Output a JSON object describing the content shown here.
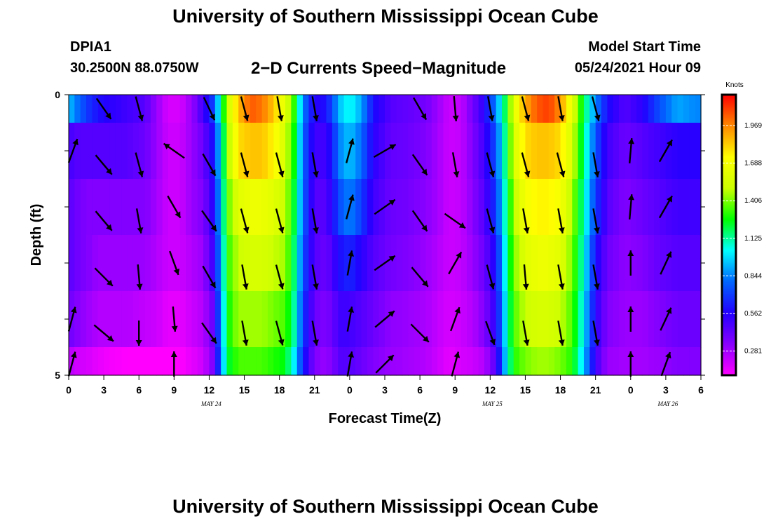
{
  "header": {
    "title": "University of Southern Mississippi Ocean Cube",
    "station_id": "DPIA1",
    "station_location": "30.2500N  88.0750W",
    "chart_title": "2−D Currents Speed−Magnitude",
    "start_label": "Model Start Time",
    "start_value": "05/24/2021 Hour 09"
  },
  "footer": {
    "title": "University of Southern Mississippi Ocean Cube"
  },
  "colors": {
    "scale": [
      "#ff00ff",
      "#8800ff",
      "#2200ff",
      "#0066ff",
      "#00ffff",
      "#00ff00",
      "#ccff00",
      "#ffff00",
      "#ff8800",
      "#ff0000"
    ],
    "arrow": "#000000"
  },
  "chart_data": {
    "type": "heatmap",
    "title": "2−D Currents Speed−Magnitude",
    "xlabel": "Forecast Time(Z)",
    "ylabel": "Depth (ft)",
    "x_tick_labels": [
      "0",
      "3",
      "6",
      "9",
      "12",
      "15",
      "18",
      "21",
      "0",
      "3",
      "6",
      "9",
      "12",
      "15",
      "18",
      "21",
      "0",
      "3",
      "6"
    ],
    "x_tick_hours": [
      0,
      3,
      6,
      9,
      12,
      15,
      18,
      21,
      24,
      27,
      30,
      33,
      36,
      39,
      42,
      45,
      48,
      51,
      54
    ],
    "date_labels": [
      {
        "label": "MAY 24",
        "hour": 12
      },
      {
        "label": "MAY 25",
        "hour": 36
      },
      {
        "label": "MAY 26",
        "hour": 51
      }
    ],
    "y_tick_labels": [
      "0",
      "5"
    ],
    "ylim": [
      0,
      5
    ],
    "xlim": [
      0,
      54
    ],
    "colorbar": {
      "unit": "Knots",
      "tick_values": [
        1.969,
        1.688,
        1.406,
        1.125,
        0.844,
        0.562,
        0.281
      ],
      "tick_labels": [
        "1.969",
        "1.688",
        "1.406",
        "1.125",
        "0.844",
        "0.562",
        "0.281"
      ],
      "range": [
        0.1,
        2.2
      ]
    },
    "depth_layers": [
      0.25,
      1.25,
      2.25,
      3.25,
      4.25,
      4.75
    ],
    "time_speed_profile": [
      {
        "hour": 0,
        "speeds": [
          0.95,
          0.5,
          0.45,
          0.45,
          0.4,
          0.25
        ]
      },
      {
        "hour": 0.5,
        "speeds": [
          0.85,
          0.45,
          0.4,
          0.4,
          0.35,
          0.2
        ]
      },
      {
        "hour": 1.5,
        "speeds": [
          0.7,
          0.45,
          0.35,
          0.35,
          0.3,
          0.18
        ]
      },
      {
        "hour": 2.5,
        "speeds": [
          0.6,
          0.45,
          0.35,
          0.3,
          0.25,
          0.15
        ]
      },
      {
        "hour": 3.5,
        "speeds": [
          0.55,
          0.45,
          0.35,
          0.3,
          0.25,
          0.12
        ]
      },
      {
        "hour": 5,
        "speeds": [
          0.5,
          0.45,
          0.35,
          0.3,
          0.25,
          0.1
        ]
      },
      {
        "hour": 6.5,
        "speeds": [
          0.45,
          0.4,
          0.35,
          0.3,
          0.22,
          0.1
        ]
      },
      {
        "hour": 7.5,
        "speeds": [
          0.3,
          0.3,
          0.28,
          0.25,
          0.2,
          0.1
        ]
      },
      {
        "hour": 8.5,
        "speeds": [
          0.18,
          0.2,
          0.2,
          0.2,
          0.15,
          0.1
        ]
      },
      {
        "hour": 9.5,
        "speeds": [
          0.18,
          0.2,
          0.2,
          0.2,
          0.15,
          0.1
        ]
      },
      {
        "hour": 10.5,
        "speeds": [
          0.3,
          0.3,
          0.3,
          0.25,
          0.2,
          0.15
        ]
      },
      {
        "hour": 11.5,
        "speeds": [
          0.5,
          0.4,
          0.35,
          0.3,
          0.25,
          0.2
        ]
      },
      {
        "hour": 12.3,
        "speeds": [
          0.7,
          0.6,
          0.55,
          0.5,
          0.4,
          0.35
        ]
      },
      {
        "hour": 13,
        "speeds": [
          1.1,
          1.0,
          0.95,
          0.9,
          0.85,
          0.8
        ]
      },
      {
        "hour": 13.5,
        "speeds": [
          1.5,
          1.4,
          1.35,
          1.3,
          1.25,
          1.2
        ]
      },
      {
        "hour": 14.5,
        "speeds": [
          1.85,
          1.8,
          1.6,
          1.5,
          1.45,
          1.35
        ]
      },
      {
        "hour": 15.5,
        "speeds": [
          2.05,
          1.85,
          1.65,
          1.55,
          1.45,
          1.35
        ]
      },
      {
        "hour": 16.5,
        "speeds": [
          2.0,
          1.85,
          1.65,
          1.55,
          1.45,
          1.35
        ]
      },
      {
        "hour": 17.5,
        "speeds": [
          1.85,
          1.75,
          1.6,
          1.5,
          1.4,
          1.3
        ]
      },
      {
        "hour": 18.5,
        "speeds": [
          1.6,
          1.55,
          1.5,
          1.45,
          1.35,
          1.25
        ]
      },
      {
        "hour": 19.3,
        "speeds": [
          1.3,
          1.25,
          1.2,
          1.15,
          1.1,
          1.0
        ]
      },
      {
        "hour": 20,
        "speeds": [
          0.85,
          0.8,
          0.8,
          0.75,
          0.7,
          0.65
        ]
      },
      {
        "hour": 21,
        "speeds": [
          0.55,
          0.5,
          0.45,
          0.45,
          0.4,
          0.35
        ]
      },
      {
        "hour": 22,
        "speeds": [
          0.6,
          0.5,
          0.45,
          0.4,
          0.35,
          0.3
        ]
      },
      {
        "hour": 23.2,
        "speeds": [
          0.95,
          0.85,
          0.75,
          0.6,
          0.5,
          0.45
        ]
      },
      {
        "hour": 24,
        "speeds": [
          1.05,
          0.95,
          0.85,
          0.65,
          0.5,
          0.45
        ]
      },
      {
        "hour": 25,
        "speeds": [
          0.9,
          0.8,
          0.7,
          0.55,
          0.45,
          0.4
        ]
      },
      {
        "hour": 26,
        "speeds": [
          0.6,
          0.55,
          0.5,
          0.45,
          0.4,
          0.35
        ]
      },
      {
        "hour": 27.5,
        "speeds": [
          0.45,
          0.42,
          0.4,
          0.38,
          0.32,
          0.3
        ]
      },
      {
        "hour": 29,
        "speeds": [
          0.42,
          0.4,
          0.38,
          0.35,
          0.3,
          0.28
        ]
      },
      {
        "hour": 30.5,
        "speeds": [
          0.38,
          0.35,
          0.33,
          0.3,
          0.27,
          0.25
        ]
      },
      {
        "hour": 31.5,
        "speeds": [
          0.3,
          0.28,
          0.28,
          0.25,
          0.22,
          0.2
        ]
      },
      {
        "hour": 32.5,
        "speeds": [
          0.2,
          0.2,
          0.2,
          0.2,
          0.18,
          0.15
        ]
      },
      {
        "hour": 33.5,
        "speeds": [
          0.22,
          0.22,
          0.22,
          0.22,
          0.2,
          0.18
        ]
      },
      {
        "hour": 34.5,
        "speeds": [
          0.38,
          0.35,
          0.33,
          0.3,
          0.25,
          0.2
        ]
      },
      {
        "hour": 35.5,
        "speeds": [
          0.55,
          0.5,
          0.45,
          0.4,
          0.35,
          0.25
        ]
      },
      {
        "hour": 36.5,
        "speeds": [
          0.85,
          0.75,
          0.7,
          0.6,
          0.55,
          0.45
        ]
      },
      {
        "hour": 37.3,
        "speeds": [
          1.2,
          1.15,
          1.1,
          1.05,
          1.0,
          0.95
        ]
      },
      {
        "hour": 38,
        "speeds": [
          1.6,
          1.55,
          1.45,
          1.4,
          1.35,
          1.3
        ]
      },
      {
        "hour": 39,
        "speeds": [
          1.9,
          1.8,
          1.7,
          1.6,
          1.5,
          1.4
        ]
      },
      {
        "hour": 40,
        "speeds": [
          2.05,
          1.85,
          1.75,
          1.65,
          1.55,
          1.45
        ]
      },
      {
        "hour": 41,
        "speeds": [
          2.1,
          1.85,
          1.75,
          1.65,
          1.55,
          1.45
        ]
      },
      {
        "hour": 42,
        "speeds": [
          1.95,
          1.8,
          1.7,
          1.6,
          1.5,
          1.4
        ]
      },
      {
        "hour": 43,
        "speeds": [
          1.6,
          1.55,
          1.45,
          1.4,
          1.35,
          1.3
        ]
      },
      {
        "hour": 44,
        "speeds": [
          1.2,
          1.15,
          1.1,
          1.05,
          1.0,
          0.95
        ]
      },
      {
        "hour": 45,
        "speeds": [
          0.85,
          0.75,
          0.7,
          0.6,
          0.55,
          0.5
        ]
      },
      {
        "hour": 46,
        "speeds": [
          0.6,
          0.5,
          0.45,
          0.4,
          0.35,
          0.3
        ]
      },
      {
        "hour": 47.5,
        "speeds": [
          0.45,
          0.4,
          0.35,
          0.32,
          0.3,
          0.28
        ]
      },
      {
        "hour": 49,
        "speeds": [
          0.55,
          0.45,
          0.4,
          0.35,
          0.3,
          0.28
        ]
      },
      {
        "hour": 50.5,
        "speeds": [
          0.75,
          0.5,
          0.45,
          0.42,
          0.35,
          0.3
        ]
      },
      {
        "hour": 52,
        "speeds": [
          0.9,
          0.55,
          0.5,
          0.45,
          0.4,
          0.35
        ]
      },
      {
        "hour": 53.5,
        "speeds": [
          0.85,
          0.55,
          0.5,
          0.45,
          0.4,
          0.35
        ]
      }
    ],
    "current_arrows": [
      {
        "hour": 0,
        "depth_ft": 1.0,
        "dir_deg": 20
      },
      {
        "hour": 0,
        "depth_ft": 4.0,
        "dir_deg": 15
      },
      {
        "hour": 0,
        "depth_ft": 4.8,
        "dir_deg": 15
      },
      {
        "hour": 3,
        "depth_ft": 0.25,
        "dir_deg": 145
      },
      {
        "hour": 3,
        "depth_ft": 1.25,
        "dir_deg": 140
      },
      {
        "hour": 3,
        "depth_ft": 2.25,
        "dir_deg": 140
      },
      {
        "hour": 3,
        "depth_ft": 3.25,
        "dir_deg": 135
      },
      {
        "hour": 3,
        "depth_ft": 4.25,
        "dir_deg": 130
      },
      {
        "hour": 6,
        "depth_ft": 0.25,
        "dir_deg": 165
      },
      {
        "hour": 6,
        "depth_ft": 1.25,
        "dir_deg": 165
      },
      {
        "hour": 6,
        "depth_ft": 2.25,
        "dir_deg": 170
      },
      {
        "hour": 6,
        "depth_ft": 3.25,
        "dir_deg": 175
      },
      {
        "hour": 6,
        "depth_ft": 4.25,
        "dir_deg": 180
      },
      {
        "hour": 9,
        "depth_ft": 1.0,
        "dir_deg": 305
      },
      {
        "hour": 9,
        "depth_ft": 2.0,
        "dir_deg": 150
      },
      {
        "hour": 9,
        "depth_ft": 3.0,
        "dir_deg": 160
      },
      {
        "hour": 9,
        "depth_ft": 4.0,
        "dir_deg": 175
      },
      {
        "hour": 9,
        "depth_ft": 4.8,
        "dir_deg": 0
      },
      {
        "hour": 12,
        "depth_ft": 0.25,
        "dir_deg": 155
      },
      {
        "hour": 12,
        "depth_ft": 1.25,
        "dir_deg": 150
      },
      {
        "hour": 12,
        "depth_ft": 2.25,
        "dir_deg": 145
      },
      {
        "hour": 12,
        "depth_ft": 3.25,
        "dir_deg": 150
      },
      {
        "hour": 12,
        "depth_ft": 4.25,
        "dir_deg": 145
      },
      {
        "hour": 15,
        "depth_ft": 0.25,
        "dir_deg": 165
      },
      {
        "hour": 15,
        "depth_ft": 1.25,
        "dir_deg": 165
      },
      {
        "hour": 15,
        "depth_ft": 2.25,
        "dir_deg": 165
      },
      {
        "hour": 15,
        "depth_ft": 3.25,
        "dir_deg": 170
      },
      {
        "hour": 15,
        "depth_ft": 4.25,
        "dir_deg": 170
      },
      {
        "hour": 18,
        "depth_ft": 0.25,
        "dir_deg": 170
      },
      {
        "hour": 18,
        "depth_ft": 1.25,
        "dir_deg": 165
      },
      {
        "hour": 18,
        "depth_ft": 2.25,
        "dir_deg": 165
      },
      {
        "hour": 18,
        "depth_ft": 3.25,
        "dir_deg": 165
      },
      {
        "hour": 18,
        "depth_ft": 4.25,
        "dir_deg": 165
      },
      {
        "hour": 21,
        "depth_ft": 0.25,
        "dir_deg": 170
      },
      {
        "hour": 21,
        "depth_ft": 1.25,
        "dir_deg": 170
      },
      {
        "hour": 21,
        "depth_ft": 2.25,
        "dir_deg": 170
      },
      {
        "hour": 21,
        "depth_ft": 3.25,
        "dir_deg": 170
      },
      {
        "hour": 21,
        "depth_ft": 4.25,
        "dir_deg": 170
      },
      {
        "hour": 24,
        "depth_ft": 1.0,
        "dir_deg": 15
      },
      {
        "hour": 24,
        "depth_ft": 2.0,
        "dir_deg": 15
      },
      {
        "hour": 24,
        "depth_ft": 3.0,
        "dir_deg": 10
      },
      {
        "hour": 24,
        "depth_ft": 4.0,
        "dir_deg": 10
      },
      {
        "hour": 24,
        "depth_ft": 4.8,
        "dir_deg": 10
      },
      {
        "hour": 27,
        "depth_ft": 1.0,
        "dir_deg": 60
      },
      {
        "hour": 27,
        "depth_ft": 2.0,
        "dir_deg": 55
      },
      {
        "hour": 27,
        "depth_ft": 3.0,
        "dir_deg": 55
      },
      {
        "hour": 27,
        "depth_ft": 4.0,
        "dir_deg": 50
      },
      {
        "hour": 27,
        "depth_ft": 4.8,
        "dir_deg": 45
      },
      {
        "hour": 30,
        "depth_ft": 0.25,
        "dir_deg": 150
      },
      {
        "hour": 30,
        "depth_ft": 1.25,
        "dir_deg": 145
      },
      {
        "hour": 30,
        "depth_ft": 2.25,
        "dir_deg": 145
      },
      {
        "hour": 30,
        "depth_ft": 3.25,
        "dir_deg": 140
      },
      {
        "hour": 30,
        "depth_ft": 4.25,
        "dir_deg": 135
      },
      {
        "hour": 33,
        "depth_ft": 0.25,
        "dir_deg": 175
      },
      {
        "hour": 33,
        "depth_ft": 1.25,
        "dir_deg": 170
      },
      {
        "hour": 33,
        "depth_ft": 2.25,
        "dir_deg": 125
      },
      {
        "hour": 33,
        "depth_ft": 3.0,
        "dir_deg": 30
      },
      {
        "hour": 33,
        "depth_ft": 4.0,
        "dir_deg": 20
      },
      {
        "hour": 33,
        "depth_ft": 4.8,
        "dir_deg": 15
      },
      {
        "hour": 36,
        "depth_ft": 0.25,
        "dir_deg": 170
      },
      {
        "hour": 36,
        "depth_ft": 1.25,
        "dir_deg": 165
      },
      {
        "hour": 36,
        "depth_ft": 2.25,
        "dir_deg": 165
      },
      {
        "hour": 36,
        "depth_ft": 3.25,
        "dir_deg": 165
      },
      {
        "hour": 36,
        "depth_ft": 4.25,
        "dir_deg": 160
      },
      {
        "hour": 39,
        "depth_ft": 0.25,
        "dir_deg": 165
      },
      {
        "hour": 39,
        "depth_ft": 1.25,
        "dir_deg": 165
      },
      {
        "hour": 39,
        "depth_ft": 2.25,
        "dir_deg": 170
      },
      {
        "hour": 39,
        "depth_ft": 3.25,
        "dir_deg": 175
      },
      {
        "hour": 39,
        "depth_ft": 4.25,
        "dir_deg": 170
      },
      {
        "hour": 42,
        "depth_ft": 0.25,
        "dir_deg": 170
      },
      {
        "hour": 42,
        "depth_ft": 1.25,
        "dir_deg": 165
      },
      {
        "hour": 42,
        "depth_ft": 2.25,
        "dir_deg": 170
      },
      {
        "hour": 42,
        "depth_ft": 3.25,
        "dir_deg": 170
      },
      {
        "hour": 42,
        "depth_ft": 4.25,
        "dir_deg": 170
      },
      {
        "hour": 45,
        "depth_ft": 0.25,
        "dir_deg": 165
      },
      {
        "hour": 45,
        "depth_ft": 1.25,
        "dir_deg": 170
      },
      {
        "hour": 45,
        "depth_ft": 2.25,
        "dir_deg": 170
      },
      {
        "hour": 45,
        "depth_ft": 3.25,
        "dir_deg": 170
      },
      {
        "hour": 45,
        "depth_ft": 4.25,
        "dir_deg": 170
      },
      {
        "hour": 48,
        "depth_ft": 1.0,
        "dir_deg": 5
      },
      {
        "hour": 48,
        "depth_ft": 2.0,
        "dir_deg": 5
      },
      {
        "hour": 48,
        "depth_ft": 3.0,
        "dir_deg": 0
      },
      {
        "hour": 48,
        "depth_ft": 4.0,
        "dir_deg": 0
      },
      {
        "hour": 48,
        "depth_ft": 4.8,
        "dir_deg": 0
      },
      {
        "hour": 51,
        "depth_ft": 1.0,
        "dir_deg": 30
      },
      {
        "hour": 51,
        "depth_ft": 2.0,
        "dir_deg": 30
      },
      {
        "hour": 51,
        "depth_ft": 3.0,
        "dir_deg": 25
      },
      {
        "hour": 51,
        "depth_ft": 4.0,
        "dir_deg": 25
      },
      {
        "hour": 51,
        "depth_ft": 4.8,
        "dir_deg": 20
      }
    ]
  }
}
